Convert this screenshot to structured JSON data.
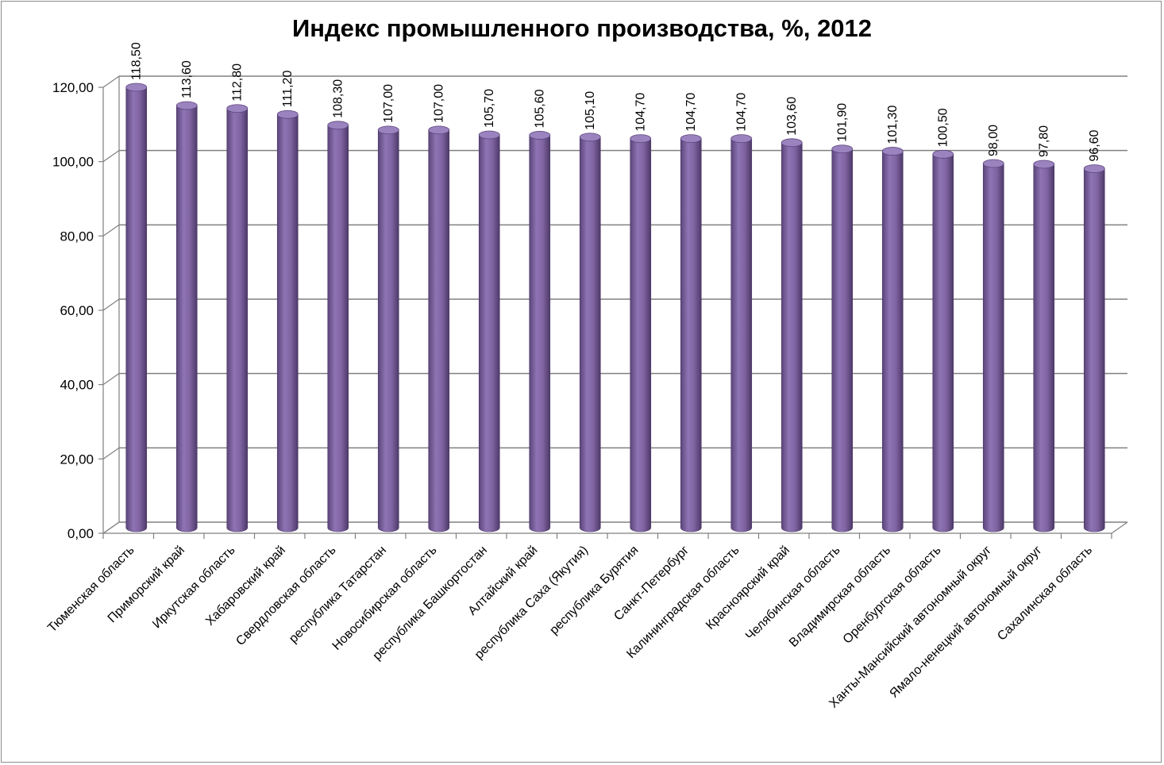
{
  "chart_data": {
    "type": "bar",
    "title": "Индекс промышленного производства, %, 2012",
    "xlabel": "",
    "ylabel": "",
    "ylim": [
      0,
      120
    ],
    "yticks": [
      "0,00",
      "20,00",
      "40,00",
      "60,00",
      "80,00",
      "100,00",
      "120,00"
    ],
    "grid": true,
    "legend": "none",
    "color": "#8064A2",
    "categories": [
      "Тюменская область",
      "Приморский край",
      "Иркутская область",
      "Хабаровский край",
      "Свердловская область",
      "республика Татарстан",
      "Новосибирская область",
      "республика Башкортостан",
      "Алтайский край",
      "республика Саха (Якутия)",
      "республика Бурятия",
      "Санкт-Петербург",
      "Калининградская область",
      "Красноярский край",
      "Челябинская область",
      "Владимирская область",
      "Оренбургская область",
      "Ханты-Мансийский автономный округ",
      "Ямало-ненецкий автономный округ",
      "Сахалинская область"
    ],
    "values": [
      118.5,
      113.6,
      112.8,
      111.2,
      108.3,
      107.0,
      107.0,
      105.7,
      105.6,
      105.1,
      104.7,
      104.7,
      104.7,
      103.6,
      101.9,
      101.3,
      100.5,
      98.0,
      97.8,
      96.6
    ],
    "value_labels": [
      "118,50",
      "113,60",
      "112,80",
      "111,20",
      "108,30",
      "107,00",
      "107,00",
      "105,70",
      "105,60",
      "105,10",
      "104,70",
      "104,70",
      "104,70",
      "103,60",
      "101,90",
      "101,30",
      "100,50",
      "98,00",
      "97,80",
      "96,60"
    ]
  }
}
